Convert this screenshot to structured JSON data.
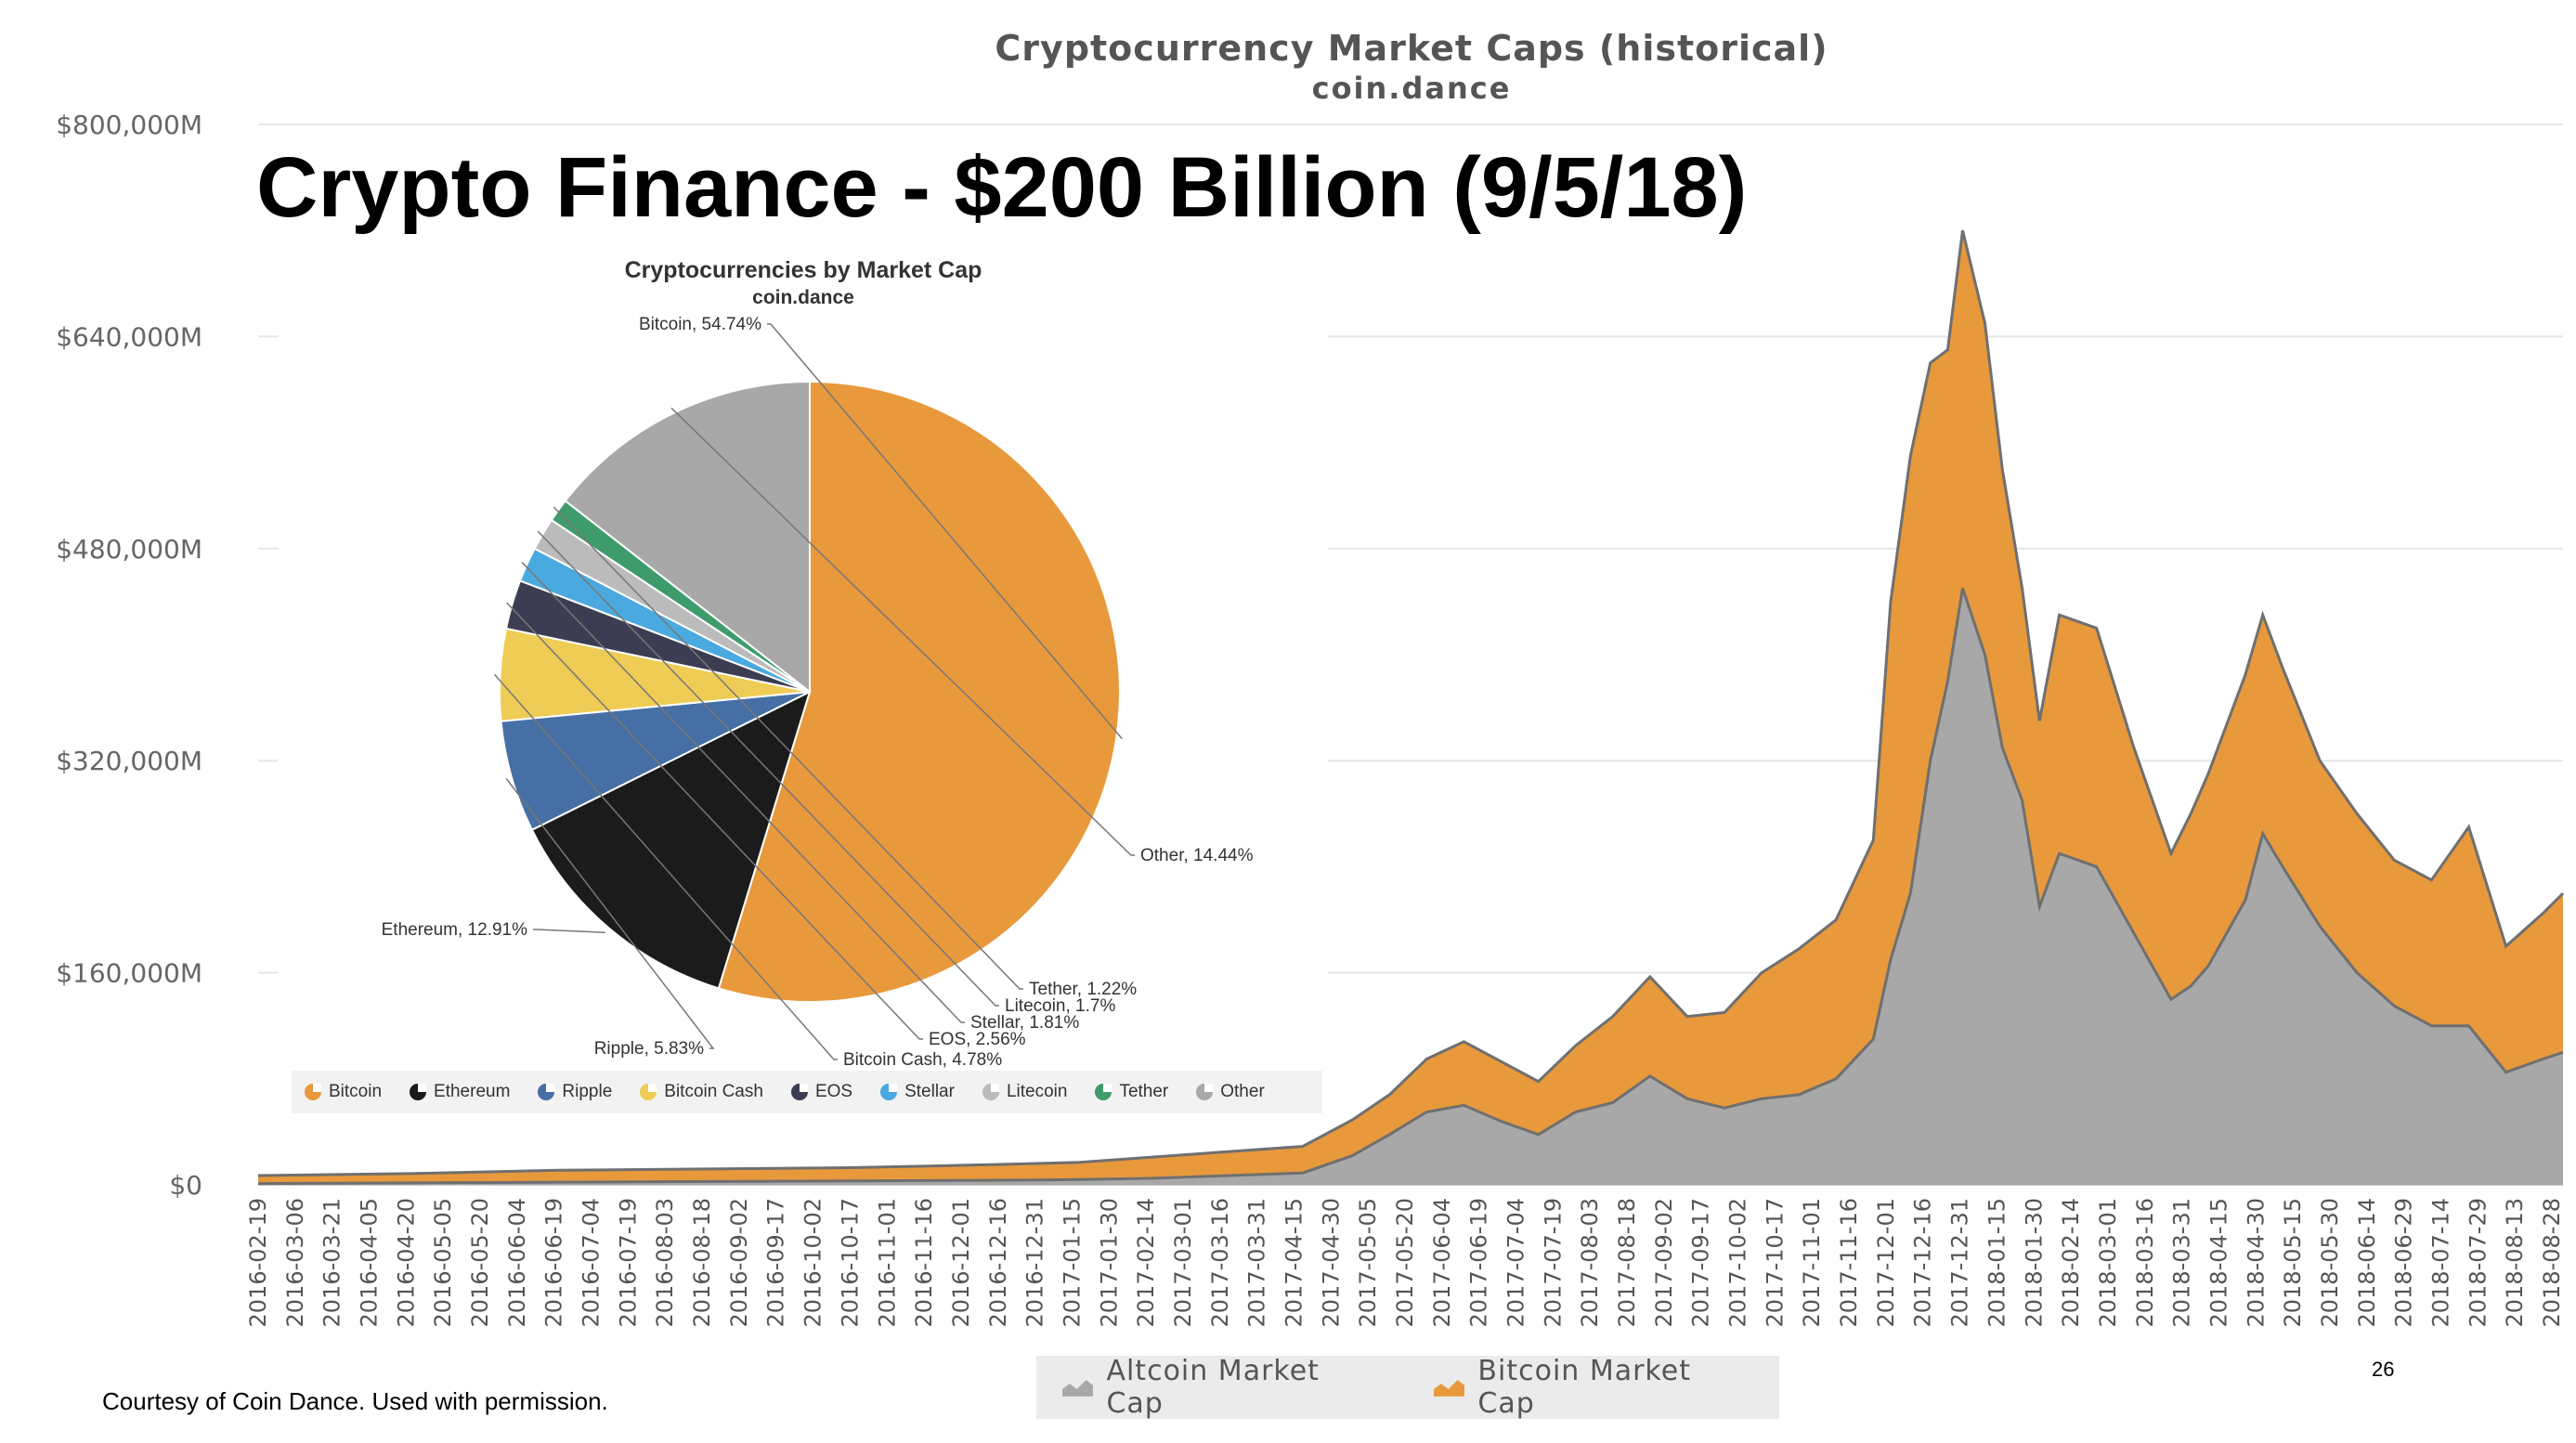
{
  "slide": {
    "title": "Crypto Finance - $200 Billion (9/5/18)",
    "credit": "Courtesy of Coin Dance. Used with permission.",
    "page_number": "26"
  },
  "chart_data": [
    {
      "type": "area",
      "title": "Cryptocurrency Market Caps (historical)",
      "subtitle": "coin.dance",
      "stacked": true,
      "ylim": [
        0,
        800000
      ],
      "yticks": [
        0,
        160000,
        320000,
        480000,
        640000,
        800000
      ],
      "ytick_labels": [
        "$0",
        "$160,000M",
        "$320,000M",
        "$480,000M",
        "$640,000M",
        "$800,000M"
      ],
      "grid": true,
      "legend_position": "bottom",
      "x_tick_labels": [
        "2016-02-19",
        "2016-03-06",
        "2016-03-21",
        "2016-04-05",
        "2016-04-20",
        "2016-05-05",
        "2016-05-20",
        "2016-06-04",
        "2016-06-19",
        "2016-07-04",
        "2016-07-19",
        "2016-08-03",
        "2016-08-18",
        "2016-09-02",
        "2016-09-17",
        "2016-10-02",
        "2016-10-17",
        "2016-11-01",
        "2016-11-16",
        "2016-12-01",
        "2016-12-16",
        "2016-12-31",
        "2017-01-15",
        "2017-01-30",
        "2017-02-14",
        "2017-03-01",
        "2017-03-16",
        "2017-03-31",
        "2017-04-15",
        "2017-04-30",
        "2017-05-05",
        "2017-05-20",
        "2017-06-04",
        "2017-06-19",
        "2017-07-04",
        "2017-07-19",
        "2017-08-03",
        "2017-08-18",
        "2017-09-02",
        "2017-09-17",
        "2017-10-02",
        "2017-10-17",
        "2017-11-01",
        "2017-11-16",
        "2017-12-01",
        "2017-12-16",
        "2017-12-31",
        "2018-01-15",
        "2018-01-30",
        "2018-02-14",
        "2018-03-01",
        "2018-03-16",
        "2018-03-31",
        "2018-04-15",
        "2018-04-30",
        "2018-05-15",
        "2018-05-30",
        "2018-06-14",
        "2018-06-29",
        "2018-07-14",
        "2018-07-29",
        "2018-08-13",
        "2018-08-28"
      ],
      "x": [
        "2016-02-19",
        "2016-04-20",
        "2016-06-19",
        "2016-08-18",
        "2016-10-17",
        "2016-12-16",
        "2017-01-15",
        "2017-02-14",
        "2017-03-16",
        "2017-04-15",
        "2017-05-05",
        "2017-05-20",
        "2017-06-04",
        "2017-06-19",
        "2017-07-04",
        "2017-07-19",
        "2017-08-03",
        "2017-08-18",
        "2017-09-02",
        "2017-09-17",
        "2017-10-02",
        "2017-10-17",
        "2017-11-01",
        "2017-11-16",
        "2017-12-01",
        "2017-12-08",
        "2017-12-16",
        "2017-12-24",
        "2017-12-31",
        "2018-01-06",
        "2018-01-15",
        "2018-01-22",
        "2018-01-30",
        "2018-02-06",
        "2018-02-14",
        "2018-03-01",
        "2018-03-16",
        "2018-03-31",
        "2018-04-08",
        "2018-04-15",
        "2018-04-30",
        "2018-05-07",
        "2018-05-15",
        "2018-05-30",
        "2018-06-14",
        "2018-06-29",
        "2018-07-14",
        "2018-07-29",
        "2018-08-13",
        "2018-08-28",
        "2018-09-05"
      ],
      "series": [
        {
          "name": "Altcoin Market Cap",
          "color": "#a8a8a8",
          "values": [
            1000,
            1500,
            2000,
            2500,
            3000,
            3500,
            4000,
            5000,
            7000,
            9000,
            22000,
            38000,
            55000,
            60000,
            48000,
            38000,
            55000,
            62000,
            82000,
            65000,
            58000,
            65000,
            68000,
            80000,
            110000,
            170000,
            220000,
            320000,
            380000,
            450000,
            400000,
            330000,
            290000,
            210000,
            250000,
            240000,
            190000,
            140000,
            150000,
            165000,
            215000,
            265000,
            240000,
            195000,
            160000,
            135000,
            120000,
            120000,
            85000,
            95000,
            100000
          ]
        },
        {
          "name": "Bitcoin Market Cap",
          "color": "#e8993c",
          "values": [
            6000,
            7000,
            9000,
            9500,
            10000,
            12000,
            13000,
            16000,
            18000,
            20000,
            27000,
            30000,
            40000,
            48000,
            45000,
            40000,
            50000,
            65000,
            75000,
            62000,
            72000,
            95000,
            110000,
            120000,
            150000,
            270000,
            330000,
            300000,
            250000,
            270000,
            250000,
            210000,
            160000,
            140000,
            180000,
            180000,
            140000,
            110000,
            130000,
            145000,
            170000,
            165000,
            150000,
            125000,
            120000,
            110000,
            110000,
            150000,
            95000,
            110000,
            120000
          ]
        }
      ]
    },
    {
      "type": "pie",
      "title": "Cryptocurrencies by Market Cap",
      "subtitle": "coin.dance",
      "legend_position": "bottom",
      "slices": [
        {
          "name": "Bitcoin",
          "value": 54.74,
          "label": "Bitcoin, 54.74%",
          "color": "#e8993c"
        },
        {
          "name": "Ethereum",
          "value": 12.91,
          "label": "Ethereum, 12.91%",
          "color": "#1b1b1b"
        },
        {
          "name": "Ripple",
          "value": 5.83,
          "label": "Ripple, 5.83%",
          "color": "#4670a5"
        },
        {
          "name": "Bitcoin Cash",
          "value": 4.78,
          "label": "Bitcoin Cash, 4.78%",
          "color": "#eecc55"
        },
        {
          "name": "EOS",
          "value": 2.56,
          "label": "EOS, 2.56%",
          "color": "#3c3d52"
        },
        {
          "name": "Stellar",
          "value": 1.81,
          "label": "Stellar, 1.81%",
          "color": "#4aa9de"
        },
        {
          "name": "Litecoin",
          "value": 1.7,
          "label": "Litecoin, 1.7%",
          "color": "#bbbbbb"
        },
        {
          "name": "Tether",
          "value": 1.22,
          "label": "Tether, 1.22%",
          "color": "#3e9c6c"
        },
        {
          "name": "Other",
          "value": 14.44,
          "label": "Other, 14.44%",
          "color": "#a8a8a8"
        }
      ]
    }
  ]
}
